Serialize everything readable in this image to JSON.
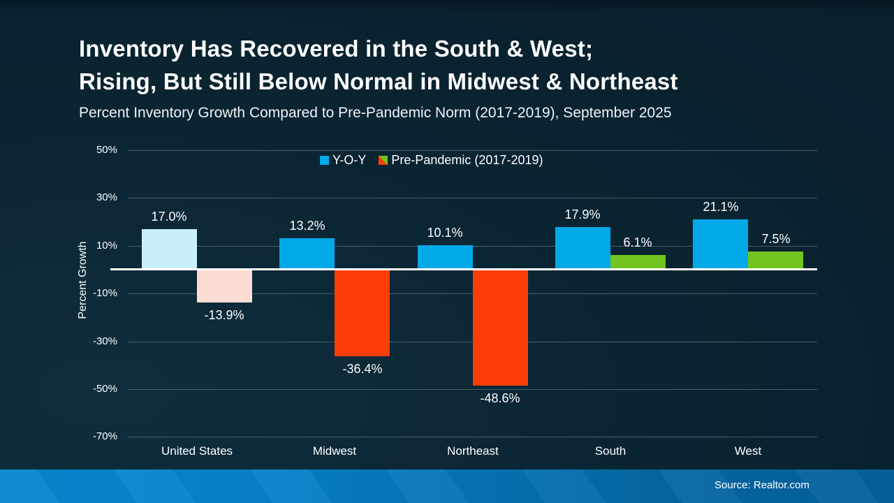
{
  "title": {
    "line1": "Inventory Has Recovered in the South & West;",
    "line2": "Rising, But Still Below Normal in Midwest & Northeast"
  },
  "subtitle": "Percent Inventory Growth Compared to Pre-Pandemic Norm (2017-2019), September 2025",
  "legend": {
    "items": [
      {
        "label": "Y-O-Y",
        "swatch": "solid",
        "color": "#02a9e9"
      },
      {
        "label": "Pre-Pandemic (2017-2019)",
        "swatch": "split",
        "colors": [
          "#72c41e",
          "#fb3e06"
        ]
      }
    ]
  },
  "chart_data": {
    "type": "bar",
    "categories": [
      "United States",
      "Midwest",
      "Northeast",
      "South",
      "West"
    ],
    "series": [
      {
        "name": "Y-O-Y",
        "values": [
          17.0,
          13.2,
          10.1,
          17.9,
          21.1
        ],
        "labels": [
          "17.0%",
          "13.2%",
          "10.1%",
          "17.9%",
          "21.1%"
        ],
        "colors": [
          "#cbeefb",
          "#02a9e9",
          "#02a9e9",
          "#02a9e9",
          "#02a9e9"
        ]
      },
      {
        "name": "Pre-Pandemic (2017-2019)",
        "values": [
          -13.9,
          -36.4,
          -48.6,
          6.1,
          7.5
        ],
        "labels": [
          "-13.9%",
          "-36.4%",
          "-48.6%",
          "6.1%",
          "7.5%"
        ],
        "colors": [
          "#fcddd3",
          "#fb3e06",
          "#fb3e06",
          "#72c41e",
          "#72c41e"
        ]
      }
    ],
    "ylabel": "Percent Growth",
    "yticks": [
      50,
      30,
      10,
      -10,
      -30,
      -50,
      -70
    ],
    "ytick_labels": [
      "50%",
      "30%",
      "10%",
      "-10%",
      "-30%",
      "-50%",
      "-70%"
    ],
    "ylim": [
      -70,
      50
    ],
    "grid": true,
    "legend_position": "top-center",
    "baseline": 0
  },
  "footer": {
    "source": "Source: Realtor.com"
  },
  "colors": {
    "background": "#0a2431",
    "grid": "#7d8d98",
    "zero_line": "#ffffff",
    "text": "#ffffff",
    "footer_band_left": "#0888d0",
    "footer_band_right": "#04619a"
  }
}
